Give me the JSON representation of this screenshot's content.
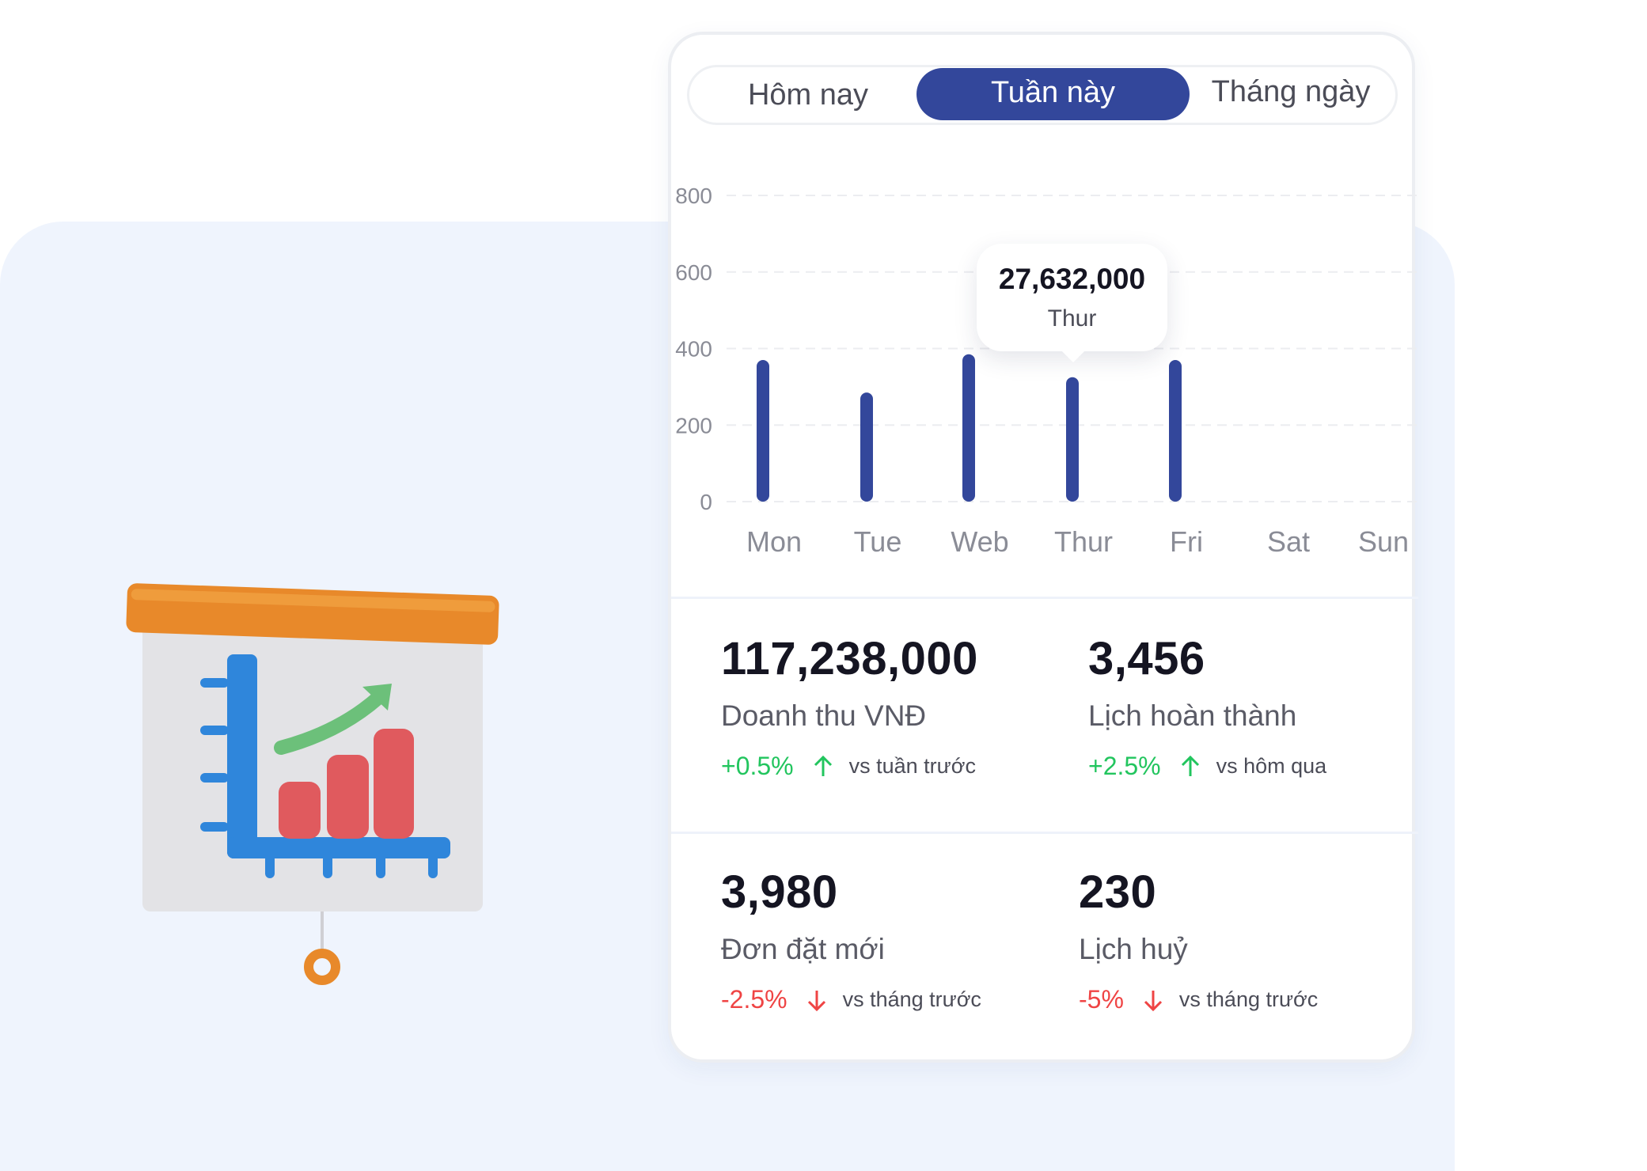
{
  "tabs": [
    {
      "label": "Hôm nay",
      "active": false
    },
    {
      "label": "Tuần này",
      "active": true
    },
    {
      "label": "Tháng ngày",
      "active": false
    }
  ],
  "colors": {
    "primary": "#33479B",
    "positive": "#22C55E",
    "negative": "#EF4444",
    "panel": "#EFF4FD"
  },
  "chart_data": {
    "type": "bar",
    "categories": [
      "Mon",
      "Tue",
      "Web",
      "Thur",
      "Fri",
      "Sat",
      "Sun"
    ],
    "values": [
      370,
      285,
      385,
      325,
      370,
      null,
      null
    ],
    "yticks": [
      0,
      200,
      400,
      600,
      800
    ],
    "ylim": [
      0,
      800
    ],
    "grid": true,
    "tooltip": {
      "value": "27,632,000",
      "label": "Thur"
    }
  },
  "stats": [
    {
      "value": "117,238,000",
      "label": "Doanh thu VNĐ",
      "change": "+0.5%",
      "direction": "up",
      "compare": "vs tuần trước"
    },
    {
      "value": "3,456",
      "label": "Lịch hoàn thành",
      "change": "+2.5%",
      "direction": "up",
      "compare": "vs hôm qua"
    },
    {
      "value": "3,980",
      "label": "Đơn đặt mới",
      "change": "-2.5%",
      "direction": "down",
      "compare": "vs tháng trước"
    },
    {
      "value": "230",
      "label": "Lịch huỷ",
      "change": "-5%",
      "direction": "down",
      "compare": "vs tháng trước"
    }
  ],
  "illustration": {
    "icon": "presentation-board-chart-icon"
  }
}
